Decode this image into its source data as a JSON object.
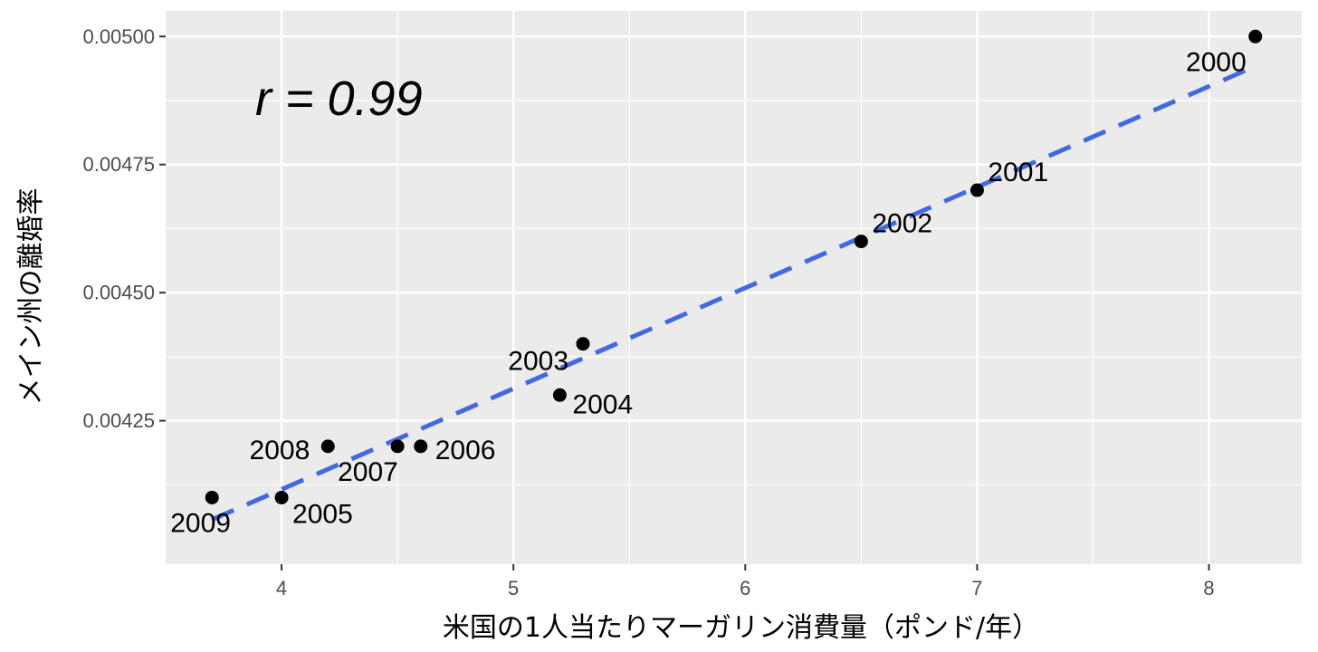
{
  "chart_data": {
    "type": "scatter",
    "title": "",
    "xlabel": "米国の1人当たりマーガリン消費量（ポンド/年）",
    "ylabel": "メイン州の離婚率",
    "xlim": [
      3.5,
      8.4
    ],
    "ylim": [
      0.00397,
      0.00505
    ],
    "x_ticks": [
      4,
      5,
      6,
      7,
      8
    ],
    "x_tick_labels": [
      "4",
      "5",
      "6",
      "7",
      "8"
    ],
    "y_ticks": [
      0.00425,
      0.0045,
      0.00475,
      0.005
    ],
    "y_tick_labels": [
      "0.00425",
      "0.00450",
      "0.00475",
      "0.00500"
    ],
    "grid": true,
    "points": [
      {
        "label": "2000",
        "x": 8.2,
        "y": 0.005
      },
      {
        "label": "2001",
        "x": 7.0,
        "y": 0.0047
      },
      {
        "label": "2002",
        "x": 6.5,
        "y": 0.0046
      },
      {
        "label": "2003",
        "x": 5.3,
        "y": 0.0044
      },
      {
        "label": "2004",
        "x": 5.2,
        "y": 0.0043
      },
      {
        "label": "2005",
        "x": 4.0,
        "y": 0.0041
      },
      {
        "label": "2006",
        "x": 4.6,
        "y": 0.0042
      },
      {
        "label": "2007",
        "x": 4.5,
        "y": 0.0042
      },
      {
        "label": "2008",
        "x": 4.2,
        "y": 0.0042
      },
      {
        "label": "2009",
        "x": 3.7,
        "y": 0.0041
      }
    ],
    "trend_line": {
      "style": "dashed",
      "color": "#4169e1",
      "x": [
        3.7,
        8.2
      ],
      "y": [
        0.004057,
        0.004942
      ]
    },
    "annotation": "r = 0.99",
    "colors": {
      "panel_background": "#ebebeb",
      "grid": "#ffffff",
      "point": "#000000"
    }
  }
}
